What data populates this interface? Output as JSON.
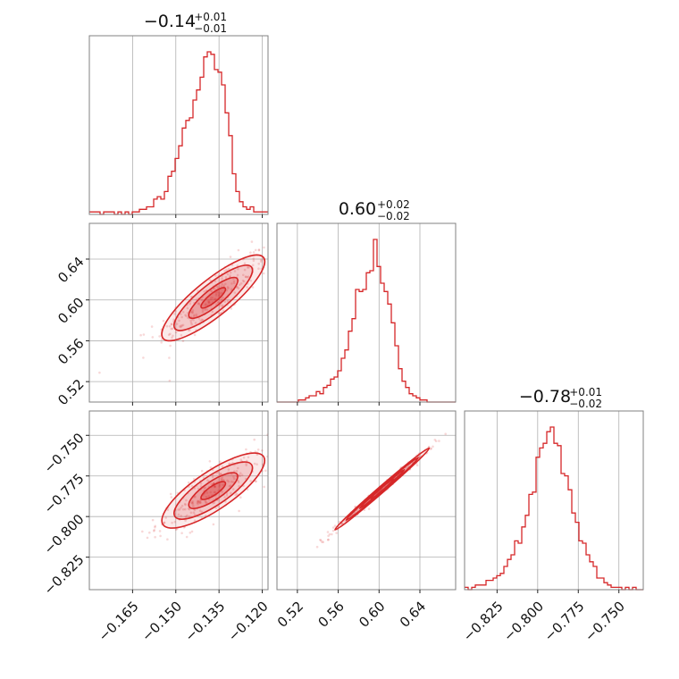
{
  "chart_data": {
    "type": "corner",
    "colors": {
      "series": "#d62728",
      "frame": "#808080",
      "grid": "#b0b0b0"
    },
    "parameters": [
      {
        "title_main": "−0.14",
        "err_plus": "+0.01",
        "err_minus": "−0.01",
        "range": [
          -0.18,
          -0.118
        ],
        "ticks": [
          -0.165,
          -0.15,
          -0.135,
          -0.12
        ],
        "tick_labels": [
          "−0.165",
          "−0.150",
          "−0.135",
          "−0.120"
        ],
        "hist": {
          "start": -0.18,
          "bin_width": 0.00124,
          "counts": [
            1,
            1,
            1,
            0,
            1,
            1,
            1,
            0,
            1,
            0,
            1,
            0,
            1,
            1,
            2,
            2,
            3,
            3,
            6,
            7,
            6,
            9,
            15,
            17,
            22,
            27,
            34,
            37,
            38,
            45,
            49,
            54,
            62,
            64,
            63,
            57,
            56,
            51,
            40,
            31,
            16,
            9,
            5,
            3,
            2,
            3,
            1,
            1,
            1,
            1
          ]
        }
      },
      {
        "title_main": "0.60",
        "err_plus": "+0.02",
        "err_minus": "−0.02",
        "range": [
          0.5,
          0.675
        ],
        "ticks": [
          0.52,
          0.56,
          0.6,
          0.64
        ],
        "tick_labels": [
          "0.52",
          "0.56",
          "0.60",
          "0.64"
        ],
        "hist": {
          "start": 0.5,
          "bin_width": 0.0035,
          "counts": [
            0,
            0,
            0,
            0,
            0,
            0,
            1,
            1,
            2,
            3,
            3,
            5,
            4,
            7,
            8,
            11,
            12,
            15,
            21,
            25,
            34,
            40,
            54,
            53,
            54,
            62,
            63,
            78,
            65,
            57,
            53,
            47,
            38,
            27,
            16,
            10,
            7,
            4,
            3,
            2,
            1,
            1,
            0,
            0,
            0,
            0,
            0,
            0,
            0,
            0
          ]
        }
      },
      {
        "title_main": "−0.78",
        "err_plus": "+0.01",
        "err_minus": "−0.02",
        "range": [
          -0.845,
          -0.735
        ],
        "ticks": [
          -0.825,
          -0.8,
          -0.775,
          -0.75
        ],
        "tick_labels": [
          "−0.825",
          "−0.800",
          "−0.775",
          "−0.750"
        ],
        "hist": {
          "start": -0.845,
          "bin_width": 0.0022,
          "counts": [
            1,
            0,
            1,
            2,
            2,
            2,
            4,
            4,
            5,
            6,
            7,
            10,
            13,
            15,
            21,
            20,
            27,
            32,
            41,
            42,
            57,
            61,
            63,
            68,
            70,
            63,
            62,
            50,
            49,
            43,
            33,
            29,
            21,
            20,
            15,
            12,
            10,
            5,
            5,
            3,
            2,
            1,
            1,
            1,
            0,
            1,
            0,
            1,
            0,
            0
          ]
        }
      }
    ],
    "pairs": [
      {
        "x_param": 0,
        "y_param": 1,
        "center": [
          -0.137,
          0.602
        ],
        "sd_x": 0.0085,
        "sd_y": 0.02,
        "rho": 0.85,
        "n_points": 260
      },
      {
        "x_param": 0,
        "y_param": 2,
        "center": [
          -0.137,
          -0.784
        ],
        "sd_x": 0.0085,
        "sd_y": 0.011,
        "rho": 0.8,
        "n_points": 260
      },
      {
        "x_param": 1,
        "y_param": 2,
        "center": [
          0.603,
          -0.783
        ],
        "sd_x": 0.022,
        "sd_y": 0.012,
        "rho": 0.995,
        "n_points": 260
      }
    ],
    "grid": true
  }
}
